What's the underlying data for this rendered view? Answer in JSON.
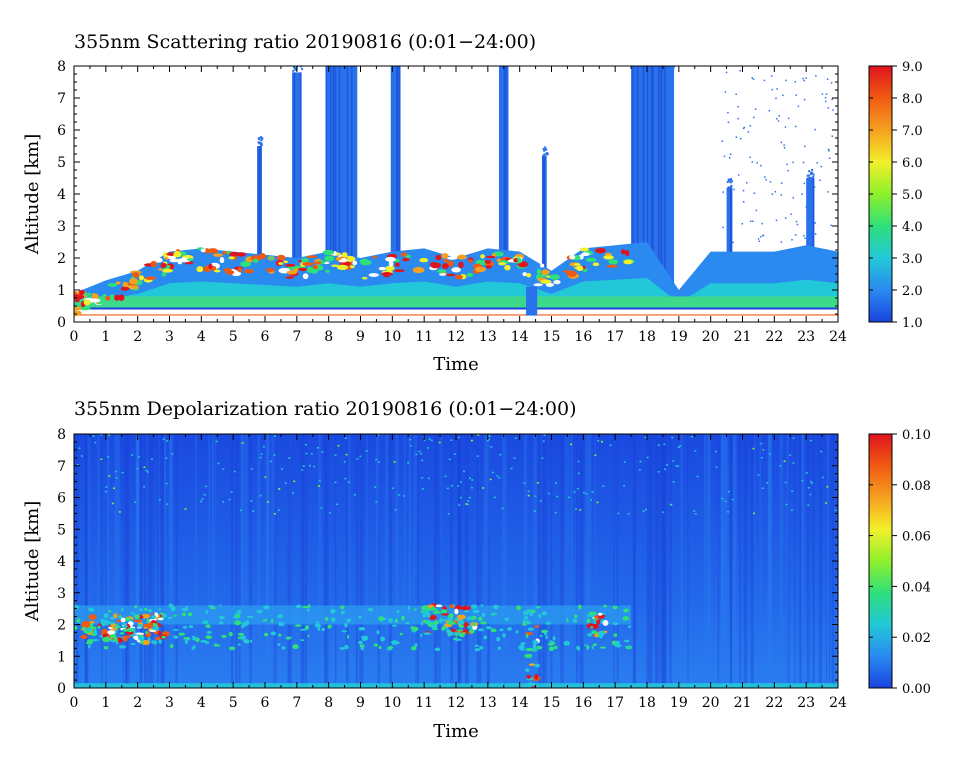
{
  "chart_data": [
    {
      "type": "heatmap",
      "title": "355nm Scattering ratio  20190816 (0:01−24:00)",
      "xlabel": "Time",
      "ylabel": "Altitude [km]",
      "xlim": [
        0,
        24
      ],
      "ylim": [
        0,
        8
      ],
      "x_ticks": [
        "0",
        "1",
        "2",
        "3",
        "4",
        "5",
        "6",
        "7",
        "8",
        "9",
        "10",
        "11",
        "12",
        "13",
        "14",
        "15",
        "16",
        "17",
        "18",
        "19",
        "20",
        "21",
        "22",
        "23",
        "24"
      ],
      "y_ticks": [
        "0",
        "1",
        "2",
        "3",
        "4",
        "5",
        "6",
        "7",
        "8"
      ],
      "colorbar": {
        "min": 1.0,
        "max": 9.0,
        "ticks": [
          "1.0",
          "2.0",
          "3.0",
          "4.0",
          "5.0",
          "6.0",
          "7.0",
          "8.0",
          "9.0"
        ],
        "colors": [
          "#1a43e0",
          "#2a8af0",
          "#22c8d8",
          "#2ee07a",
          "#8ef02c",
          "#f2f02a",
          "#f6a020",
          "#ef5a12",
          "#e0141e"
        ]
      },
      "features": {
        "boundary_layer_top_km": [
          0.9,
          1.3,
          1.6,
          2.2,
          2.3,
          2.2,
          2.1,
          2.0,
          2.2,
          2.0,
          2.2,
          2.3,
          2.0,
          2.3,
          2.2,
          1.6,
          2.3,
          2.4,
          2.5,
          1.0,
          2.2,
          2.2,
          2.2,
          2.4,
          2.2
        ],
        "columns": [
          {
            "t_start": 5.75,
            "t_end": 5.9,
            "top_km": 5.5
          },
          {
            "t_start": 6.85,
            "t_end": 7.15,
            "top_km": 7.8
          },
          {
            "t_start": 7.9,
            "t_end": 8.9,
            "top_km": 8.0
          },
          {
            "t_start": 9.95,
            "t_end": 10.25,
            "top_km": 8.0
          },
          {
            "t_start": 13.35,
            "t_end": 13.65,
            "top_km": 8.0
          },
          {
            "t_start": 14.7,
            "t_end": 14.85,
            "top_km": 5.2
          },
          {
            "t_start": 17.5,
            "t_end": 18.85,
            "top_km": 8.0
          },
          {
            "t_start": 20.5,
            "t_end": 20.65,
            "top_km": 4.2
          },
          {
            "t_start": 23.0,
            "t_end": 23.25,
            "top_km": 4.5
          }
        ]
      }
    },
    {
      "type": "heatmap",
      "title": "355nm Depolarization ratio  20190816 (0:01−24:00)",
      "xlabel": "Time",
      "ylabel": "Altitude [km]",
      "xlim": [
        0,
        24
      ],
      "ylim": [
        0,
        8
      ],
      "x_ticks": [
        "0",
        "1",
        "2",
        "3",
        "4",
        "5",
        "6",
        "7",
        "8",
        "9",
        "10",
        "11",
        "12",
        "13",
        "14",
        "15",
        "16",
        "17",
        "18",
        "19",
        "20",
        "21",
        "22",
        "23",
        "24"
      ],
      "y_ticks": [
        "0",
        "1",
        "2",
        "3",
        "4",
        "5",
        "6",
        "7",
        "8"
      ],
      "colorbar": {
        "min": 0.0,
        "max": 0.1,
        "ticks": [
          "0.00",
          "0.02",
          "0.04",
          "0.06",
          "0.08",
          "0.10"
        ],
        "colors": [
          "#1a43e0",
          "#2a8af0",
          "#22c8d8",
          "#2ee07a",
          "#8ef02c",
          "#f2f02a",
          "#f6a020",
          "#ef5a12",
          "#e0141e"
        ]
      },
      "features": {
        "aerosol_layer_km": [
          2.0,
          2.6
        ],
        "clusters": [
          {
            "t_start": 0.3,
            "t_end": 2.9,
            "bottom_km": 1.4,
            "top_km": 2.3
          },
          {
            "t_start": 11.0,
            "t_end": 12.6,
            "bottom_km": 1.7,
            "top_km": 2.6
          },
          {
            "t_start": 14.2,
            "t_end": 14.6,
            "bottom_km": 0.0,
            "top_km": 2.0
          },
          {
            "t_start": 16.2,
            "t_end": 16.7,
            "bottom_km": 1.3,
            "top_km": 2.4
          }
        ]
      }
    }
  ]
}
